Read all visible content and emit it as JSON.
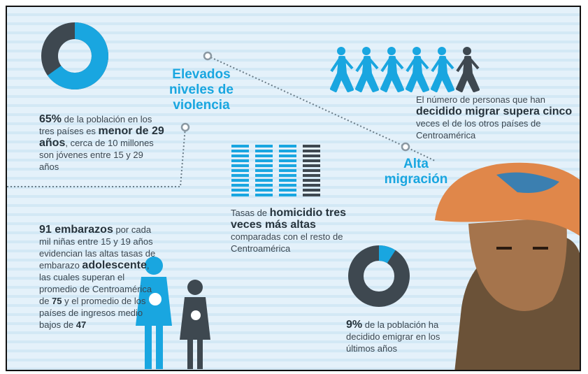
{
  "labels": {
    "violence": "Elevados niveles de violencia",
    "migration": "Alta migración"
  },
  "youth": {
    "share": 65,
    "parts": [
      "65%",
      " de la población en los tres países es ",
      "menor de 29 años",
      ", cerca de 10 millones son jóvenes entre 15 y 29 años"
    ]
  },
  "migration": {
    "parts": [
      "El número de personas que han ",
      "decidido migrar supera cinco",
      " veces el de los otros países de Centroamérica"
    ]
  },
  "homicide": {
    "parts": [
      "Tasas de ",
      "homicidio tres veces más altas",
      " comparadas con el resto de Centroamérica"
    ]
  },
  "pregnancy": {
    "parts": [
      "91 embarazos",
      " por cada mil niñas entre 15 y 19 años evidencian las altas tasas de embarazo ",
      "adolescente",
      ", las cuales superan el promedio de Centroamérica de ",
      "75",
      " y el promedio de los países de ingresos medio bajos de ",
      "47"
    ]
  },
  "emigration": {
    "share": 9,
    "parts": [
      "9%",
      " de la población ha decidido emigrar en los últimos años"
    ]
  }
}
